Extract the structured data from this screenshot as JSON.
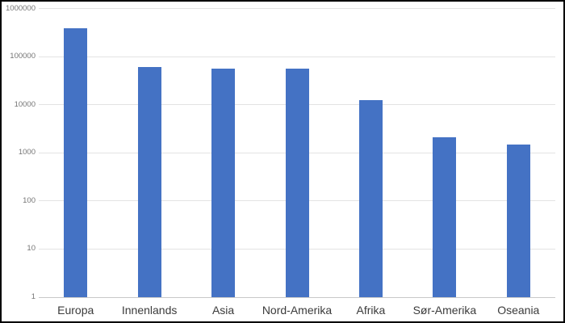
{
  "chart": {
    "bar_color": "#4472C4",
    "gridline_color": "#e3e3e3",
    "baseline_color": "#c9c9c9",
    "y_tick_color": "#757575",
    "x_label_color": "#3b3b3b"
  },
  "chart_data": {
    "type": "bar",
    "title": "",
    "categories": [
      "Europa",
      "Innenlands",
      "Asia",
      "Nord-Amerika",
      "Afrika",
      "Sør-Amerika",
      "Oseania"
    ],
    "values": [
      380000,
      60000,
      55000,
      55000,
      12000,
      2100,
      1450
    ],
    "xlabel": "",
    "ylabel": "",
    "y_axis_scale": "log",
    "y_ticks": [
      1,
      10,
      100,
      1000,
      10000,
      100000,
      1000000
    ],
    "y_tick_labels": [
      "1",
      "10",
      "100",
      "1000",
      "10000",
      "100000",
      "1000000"
    ],
    "ylim": [
      1,
      1000000
    ],
    "grid": true,
    "legend": "none"
  }
}
